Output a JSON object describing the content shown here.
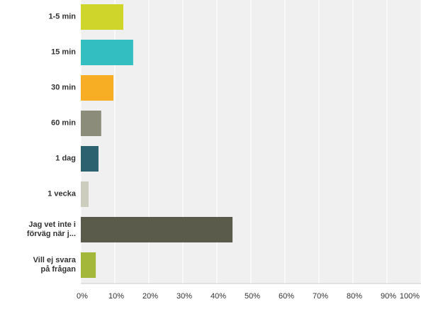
{
  "chart_data": {
    "type": "bar",
    "orientation": "horizontal",
    "categories": [
      "1-5 min",
      "15 min",
      "30 min",
      "60 min",
      "1 dag",
      "1 vecka",
      "Jag vet inte i\nförväg när j...",
      "Vill ej svara\npå frågan"
    ],
    "values": [
      12.5,
      15.4,
      9.6,
      6.0,
      5.2,
      2.3,
      44.6,
      4.4
    ],
    "colors": [
      "#d0d52b",
      "#33bfc1",
      "#f7ae24",
      "#8c8c7a",
      "#2c6170",
      "#cdcdbf",
      "#5b5b4b",
      "#a3b83a"
    ],
    "xlim": [
      0,
      100
    ],
    "xticks": [
      {
        "value": 0,
        "label": "0%"
      },
      {
        "value": 10,
        "label": "10%"
      },
      {
        "value": 20,
        "label": "20%"
      },
      {
        "value": 30,
        "label": "30%"
      },
      {
        "value": 40,
        "label": "40%"
      },
      {
        "value": 50,
        "label": "50%"
      },
      {
        "value": 60,
        "label": "60%"
      },
      {
        "value": 70,
        "label": "70%"
      },
      {
        "value": 80,
        "label": "80%"
      },
      {
        "value": 90,
        "label": "90%"
      },
      {
        "value": 100,
        "label": "100%"
      }
    ],
    "grid": true
  }
}
